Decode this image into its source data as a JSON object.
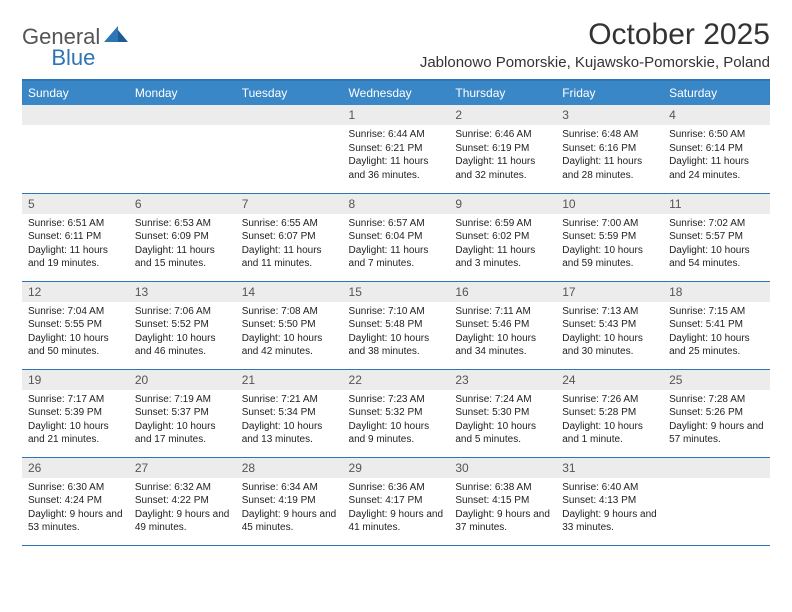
{
  "logo": {
    "text1": "General",
    "text2": "Blue"
  },
  "title": "October 2025",
  "location": "Jablonowo Pomorskie, Kujawsko-Pomorskie, Poland",
  "colors": {
    "header_bg": "#3a87c8",
    "header_text": "#ffffff",
    "border": "#2e75b6",
    "daynum_bg": "#ececec",
    "daynum_text": "#555555",
    "body_text": "#222222",
    "title_text": "#333333",
    "logo_gray": "#555555",
    "logo_blue": "#2e75b6"
  },
  "day_headers": [
    "Sunday",
    "Monday",
    "Tuesday",
    "Wednesday",
    "Thursday",
    "Friday",
    "Saturday"
  ],
  "grid": [
    [
      null,
      null,
      null,
      {
        "n": "1",
        "sr": "6:44 AM",
        "ss": "6:21 PM",
        "dl": "11 hours and 36 minutes."
      },
      {
        "n": "2",
        "sr": "6:46 AM",
        "ss": "6:19 PM",
        "dl": "11 hours and 32 minutes."
      },
      {
        "n": "3",
        "sr": "6:48 AM",
        "ss": "6:16 PM",
        "dl": "11 hours and 28 minutes."
      },
      {
        "n": "4",
        "sr": "6:50 AM",
        "ss": "6:14 PM",
        "dl": "11 hours and 24 minutes."
      }
    ],
    [
      {
        "n": "5",
        "sr": "6:51 AM",
        "ss": "6:11 PM",
        "dl": "11 hours and 19 minutes."
      },
      {
        "n": "6",
        "sr": "6:53 AM",
        "ss": "6:09 PM",
        "dl": "11 hours and 15 minutes."
      },
      {
        "n": "7",
        "sr": "6:55 AM",
        "ss": "6:07 PM",
        "dl": "11 hours and 11 minutes."
      },
      {
        "n": "8",
        "sr": "6:57 AM",
        "ss": "6:04 PM",
        "dl": "11 hours and 7 minutes."
      },
      {
        "n": "9",
        "sr": "6:59 AM",
        "ss": "6:02 PM",
        "dl": "11 hours and 3 minutes."
      },
      {
        "n": "10",
        "sr": "7:00 AM",
        "ss": "5:59 PM",
        "dl": "10 hours and 59 minutes."
      },
      {
        "n": "11",
        "sr": "7:02 AM",
        "ss": "5:57 PM",
        "dl": "10 hours and 54 minutes."
      }
    ],
    [
      {
        "n": "12",
        "sr": "7:04 AM",
        "ss": "5:55 PM",
        "dl": "10 hours and 50 minutes."
      },
      {
        "n": "13",
        "sr": "7:06 AM",
        "ss": "5:52 PM",
        "dl": "10 hours and 46 minutes."
      },
      {
        "n": "14",
        "sr": "7:08 AM",
        "ss": "5:50 PM",
        "dl": "10 hours and 42 minutes."
      },
      {
        "n": "15",
        "sr": "7:10 AM",
        "ss": "5:48 PM",
        "dl": "10 hours and 38 minutes."
      },
      {
        "n": "16",
        "sr": "7:11 AM",
        "ss": "5:46 PM",
        "dl": "10 hours and 34 minutes."
      },
      {
        "n": "17",
        "sr": "7:13 AM",
        "ss": "5:43 PM",
        "dl": "10 hours and 30 minutes."
      },
      {
        "n": "18",
        "sr": "7:15 AM",
        "ss": "5:41 PM",
        "dl": "10 hours and 25 minutes."
      }
    ],
    [
      {
        "n": "19",
        "sr": "7:17 AM",
        "ss": "5:39 PM",
        "dl": "10 hours and 21 minutes."
      },
      {
        "n": "20",
        "sr": "7:19 AM",
        "ss": "5:37 PM",
        "dl": "10 hours and 17 minutes."
      },
      {
        "n": "21",
        "sr": "7:21 AM",
        "ss": "5:34 PM",
        "dl": "10 hours and 13 minutes."
      },
      {
        "n": "22",
        "sr": "7:23 AM",
        "ss": "5:32 PM",
        "dl": "10 hours and 9 minutes."
      },
      {
        "n": "23",
        "sr": "7:24 AM",
        "ss": "5:30 PM",
        "dl": "10 hours and 5 minutes."
      },
      {
        "n": "24",
        "sr": "7:26 AM",
        "ss": "5:28 PM",
        "dl": "10 hours and 1 minute."
      },
      {
        "n": "25",
        "sr": "7:28 AM",
        "ss": "5:26 PM",
        "dl": "9 hours and 57 minutes."
      }
    ],
    [
      {
        "n": "26",
        "sr": "6:30 AM",
        "ss": "4:24 PM",
        "dl": "9 hours and 53 minutes."
      },
      {
        "n": "27",
        "sr": "6:32 AM",
        "ss": "4:22 PM",
        "dl": "9 hours and 49 minutes."
      },
      {
        "n": "28",
        "sr": "6:34 AM",
        "ss": "4:19 PM",
        "dl": "9 hours and 45 minutes."
      },
      {
        "n": "29",
        "sr": "6:36 AM",
        "ss": "4:17 PM",
        "dl": "9 hours and 41 minutes."
      },
      {
        "n": "30",
        "sr": "6:38 AM",
        "ss": "4:15 PM",
        "dl": "9 hours and 37 minutes."
      },
      {
        "n": "31",
        "sr": "6:40 AM",
        "ss": "4:13 PM",
        "dl": "9 hours and 33 minutes."
      },
      null
    ]
  ],
  "labels": {
    "sunrise": "Sunrise:",
    "sunset": "Sunset:",
    "daylight": "Daylight:"
  }
}
